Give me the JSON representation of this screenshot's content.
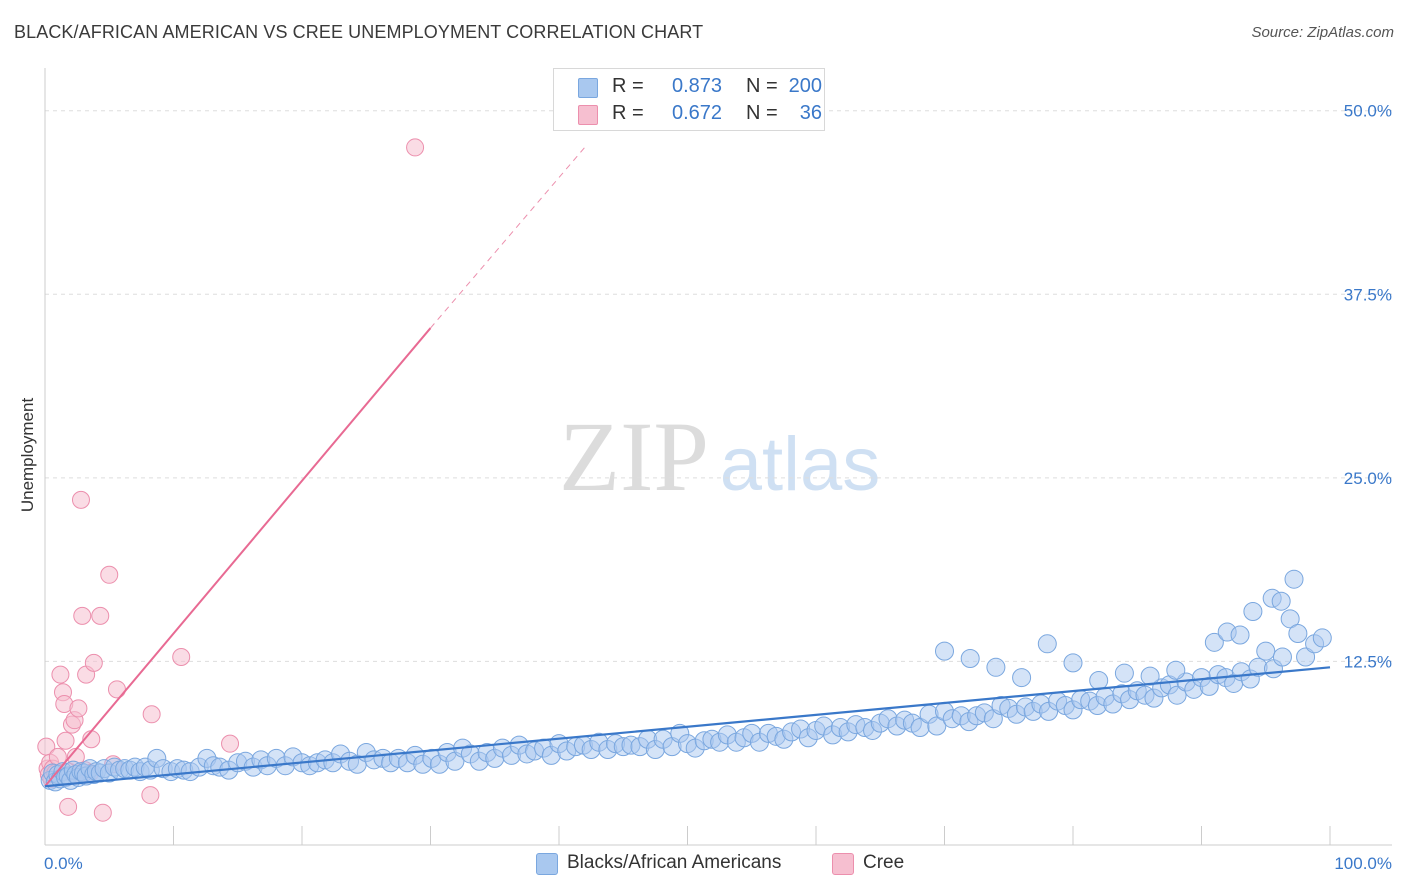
{
  "title": "BLACK/AFRICAN AMERICAN VS CREE UNEMPLOYMENT CORRELATION CHART",
  "source": "Source: ZipAtlas.com",
  "watermark": {
    "zip": "ZIP",
    "atlas": "atlas"
  },
  "colors": {
    "blue": "#3a78c9",
    "blue_fill": "#a9c8ef",
    "blue_stroke": "#7aa7df",
    "pink": "#e86a93",
    "pink_fill": "#f6bfd0",
    "pink_stroke": "#ec8fad",
    "grid": "#dddddd"
  },
  "legend": {
    "rows": [
      {
        "r_label": "R =",
        "r_value": "0.873",
        "n_label": "N =",
        "n_value": "200"
      },
      {
        "r_label": "R =",
        "r_value": "0.672",
        "n_label": "N =",
        "n_value": "36"
      }
    ]
  },
  "chart_data": {
    "type": "scatter",
    "title": "BLACK/AFRICAN AMERICAN VS CREE UNEMPLOYMENT CORRELATION CHART",
    "xlabel": "",
    "ylabel": "Unemployment",
    "xlim": [
      0,
      100
    ],
    "ylim": [
      0,
      52.5
    ],
    "x_tick_labels": [
      "0.0%",
      "100.0%"
    ],
    "y_ticks": [
      12.5,
      25.0,
      37.5,
      50.0
    ],
    "y_tick_labels": [
      "12.5%",
      "25.0%",
      "37.5%",
      "50.0%"
    ],
    "grid": true,
    "legend_position": "bottom",
    "series": [
      {
        "name": "Blacks/African Americans",
        "r": 0.873,
        "n": 200,
        "trend": {
          "x": [
            0,
            100
          ],
          "y": [
            4.0,
            12.1
          ]
        },
        "points": [
          [
            0.4,
            4.4
          ],
          [
            0.6,
            4.9
          ],
          [
            0.8,
            4.3
          ],
          [
            1.0,
            4.8
          ],
          [
            1.2,
            4.5
          ],
          [
            1.4,
            5.0
          ],
          [
            1.6,
            4.6
          ],
          [
            1.8,
            4.7
          ],
          [
            2.0,
            4.4
          ],
          [
            2.2,
            5.1
          ],
          [
            2.4,
            4.8
          ],
          [
            2.6,
            4.6
          ],
          [
            2.8,
            5.0
          ],
          [
            3.0,
            4.9
          ],
          [
            3.2,
            4.7
          ],
          [
            3.5,
            5.2
          ],
          [
            3.8,
            4.8
          ],
          [
            4.0,
            5.0
          ],
          [
            4.3,
            4.9
          ],
          [
            4.6,
            5.2
          ],
          [
            5.0,
            4.9
          ],
          [
            5.4,
            5.3
          ],
          [
            5.8,
            5.1
          ],
          [
            6.2,
            5.2
          ],
          [
            6.6,
            5.1
          ],
          [
            7.0,
            5.3
          ],
          [
            7.4,
            5.0
          ],
          [
            7.8,
            5.3
          ],
          [
            8.2,
            5.1
          ],
          [
            8.7,
            5.9
          ],
          [
            9.2,
            5.2
          ],
          [
            9.8,
            5.0
          ],
          [
            10.3,
            5.2
          ],
          [
            10.8,
            5.1
          ],
          [
            11.3,
            5.0
          ],
          [
            12.0,
            5.3
          ],
          [
            12.6,
            5.9
          ],
          [
            13.1,
            5.4
          ],
          [
            13.6,
            5.3
          ],
          [
            14.3,
            5.1
          ],
          [
            15.0,
            5.6
          ],
          [
            15.6,
            5.7
          ],
          [
            16.2,
            5.3
          ],
          [
            16.8,
            5.8
          ],
          [
            17.3,
            5.4
          ],
          [
            18.0,
            5.9
          ],
          [
            18.7,
            5.4
          ],
          [
            19.3,
            6.0
          ],
          [
            20.0,
            5.6
          ],
          [
            20.6,
            5.4
          ],
          [
            21.2,
            5.6
          ],
          [
            21.8,
            5.8
          ],
          [
            22.4,
            5.6
          ],
          [
            23.0,
            6.2
          ],
          [
            23.7,
            5.7
          ],
          [
            24.3,
            5.5
          ],
          [
            25.0,
            6.3
          ],
          [
            25.6,
            5.8
          ],
          [
            26.3,
            5.9
          ],
          [
            26.9,
            5.6
          ],
          [
            27.5,
            5.9
          ],
          [
            28.2,
            5.6
          ],
          [
            28.8,
            6.1
          ],
          [
            29.4,
            5.5
          ],
          [
            30.1,
            5.9
          ],
          [
            30.7,
            5.5
          ],
          [
            31.3,
            6.3
          ],
          [
            31.9,
            5.7
          ],
          [
            32.5,
            6.6
          ],
          [
            33.1,
            6.2
          ],
          [
            33.8,
            5.7
          ],
          [
            34.4,
            6.3
          ],
          [
            35.0,
            5.9
          ],
          [
            35.6,
            6.6
          ],
          [
            36.3,
            6.1
          ],
          [
            36.9,
            6.8
          ],
          [
            37.5,
            6.2
          ],
          [
            38.1,
            6.4
          ],
          [
            38.8,
            6.6
          ],
          [
            39.4,
            6.1
          ],
          [
            40.0,
            6.9
          ],
          [
            40.6,
            6.4
          ],
          [
            41.3,
            6.7
          ],
          [
            41.9,
            6.8
          ],
          [
            42.5,
            6.5
          ],
          [
            43.1,
            7.0
          ],
          [
            43.8,
            6.5
          ],
          [
            44.4,
            6.9
          ],
          [
            45.0,
            6.7
          ],
          [
            45.6,
            6.8
          ],
          [
            46.3,
            6.7
          ],
          [
            46.9,
            7.2
          ],
          [
            47.5,
            6.5
          ],
          [
            48.1,
            7.2
          ],
          [
            48.8,
            6.7
          ],
          [
            49.4,
            7.6
          ],
          [
            50.0,
            6.9
          ],
          [
            50.6,
            6.6
          ],
          [
            51.3,
            7.1
          ],
          [
            51.9,
            7.2
          ],
          [
            52.5,
            7.0
          ],
          [
            53.1,
            7.5
          ],
          [
            53.8,
            7.0
          ],
          [
            54.4,
            7.3
          ],
          [
            55.0,
            7.6
          ],
          [
            55.6,
            7.0
          ],
          [
            56.3,
            7.6
          ],
          [
            56.9,
            7.4
          ],
          [
            57.5,
            7.2
          ],
          [
            58.1,
            7.7
          ],
          [
            58.8,
            7.9
          ],
          [
            59.4,
            7.3
          ],
          [
            60.0,
            7.8
          ],
          [
            60.6,
            8.1
          ],
          [
            61.3,
            7.5
          ],
          [
            61.9,
            8.0
          ],
          [
            62.5,
            7.7
          ],
          [
            63.1,
            8.2
          ],
          [
            63.8,
            8.0
          ],
          [
            64.4,
            7.8
          ],
          [
            65.0,
            8.3
          ],
          [
            65.6,
            8.6
          ],
          [
            66.3,
            8.1
          ],
          [
            66.9,
            8.5
          ],
          [
            67.5,
            8.3
          ],
          [
            68.1,
            8.0
          ],
          [
            68.8,
            8.9
          ],
          [
            69.4,
            8.1
          ],
          [
            70.0,
            9.1
          ],
          [
            70.6,
            8.6
          ],
          [
            71.3,
            8.8
          ],
          [
            71.9,
            8.4
          ],
          [
            72.5,
            8.8
          ],
          [
            73.1,
            9.0
          ],
          [
            73.8,
            8.6
          ],
          [
            74.4,
            9.5
          ],
          [
            75.0,
            9.3
          ],
          [
            75.6,
            8.9
          ],
          [
            76.3,
            9.4
          ],
          [
            76.9,
            9.1
          ],
          [
            77.5,
            9.6
          ],
          [
            78.1,
            9.1
          ],
          [
            78.8,
            9.8
          ],
          [
            79.4,
            9.5
          ],
          [
            80.0,
            9.2
          ],
          [
            80.6,
            9.9
          ],
          [
            81.3,
            9.8
          ],
          [
            81.9,
            9.5
          ],
          [
            82.5,
            10.1
          ],
          [
            83.1,
            9.6
          ],
          [
            83.8,
            10.3
          ],
          [
            84.4,
            9.9
          ],
          [
            85.0,
            10.5
          ],
          [
            85.6,
            10.2
          ],
          [
            86.3,
            10.0
          ],
          [
            86.9,
            10.7
          ],
          [
            87.5,
            10.9
          ],
          [
            88.1,
            10.2
          ],
          [
            88.8,
            11.1
          ],
          [
            89.4,
            10.6
          ],
          [
            90.0,
            11.4
          ],
          [
            90.6,
            10.8
          ],
          [
            91.3,
            11.6
          ],
          [
            91.9,
            11.4
          ],
          [
            92.5,
            11.0
          ],
          [
            93.1,
            11.8
          ],
          [
            93.8,
            11.3
          ],
          [
            94.4,
            12.1
          ],
          [
            95.0,
            13.2
          ],
          [
            95.6,
            12.0
          ],
          [
            96.3,
            12.8
          ],
          [
            96.9,
            15.4
          ],
          [
            97.5,
            14.4
          ],
          [
            98.1,
            12.8
          ],
          [
            98.8,
            13.7
          ],
          [
            99.4,
            14.1
          ],
          [
            78.0,
            13.7
          ],
          [
            80.0,
            12.4
          ],
          [
            82.0,
            11.2
          ],
          [
            84.0,
            11.7
          ],
          [
            76.0,
            11.4
          ],
          [
            74.0,
            12.1
          ],
          [
            72.0,
            12.7
          ],
          [
            70.0,
            13.2
          ],
          [
            88.0,
            11.9
          ],
          [
            86.0,
            11.5
          ],
          [
            91.0,
            13.8
          ],
          [
            92.0,
            14.5
          ],
          [
            93.0,
            14.3
          ],
          [
            94.0,
            15.9
          ],
          [
            95.5,
            16.8
          ],
          [
            96.2,
            16.6
          ],
          [
            97.2,
            18.1
          ]
        ]
      },
      {
        "name": "Cree",
        "r": 0.672,
        "n": 36,
        "trend": {
          "x": [
            0,
            30
          ],
          "y": [
            4.0,
            35.2
          ]
        },
        "trend_dashed": {
          "x": [
            30,
            42
          ],
          "y": [
            35.2,
            47.5
          ]
        },
        "points": [
          [
            0.1,
            6.7
          ],
          [
            0.2,
            5.2
          ],
          [
            0.3,
            4.8
          ],
          [
            0.4,
            5.6
          ],
          [
            0.5,
            4.5
          ],
          [
            0.6,
            5.2
          ],
          [
            0.8,
            4.9
          ],
          [
            1.0,
            6.0
          ],
          [
            1.2,
            11.6
          ],
          [
            1.4,
            10.4
          ],
          [
            1.5,
            9.6
          ],
          [
            1.6,
            7.1
          ],
          [
            1.8,
            2.6
          ],
          [
            1.9,
            5.0
          ],
          [
            2.1,
            8.2
          ],
          [
            2.3,
            8.5
          ],
          [
            2.4,
            6.0
          ],
          [
            2.6,
            9.3
          ],
          [
            2.7,
            4.8
          ],
          [
            2.8,
            23.5
          ],
          [
            2.9,
            15.6
          ],
          [
            3.1,
            5.1
          ],
          [
            3.2,
            11.6
          ],
          [
            3.5,
            4.9
          ],
          [
            3.6,
            7.2
          ],
          [
            3.8,
            12.4
          ],
          [
            4.3,
            15.6
          ],
          [
            4.5,
            2.2
          ],
          [
            5.0,
            18.4
          ],
          [
            5.3,
            5.5
          ],
          [
            5.6,
            10.6
          ],
          [
            8.2,
            3.4
          ],
          [
            8.3,
            8.9
          ],
          [
            10.6,
            12.8
          ],
          [
            14.4,
            6.9
          ],
          [
            28.8,
            47.5
          ]
        ]
      }
    ]
  },
  "bottom_legend": [
    {
      "label": "Blacks/African Americans"
    },
    {
      "label": "Cree"
    }
  ]
}
